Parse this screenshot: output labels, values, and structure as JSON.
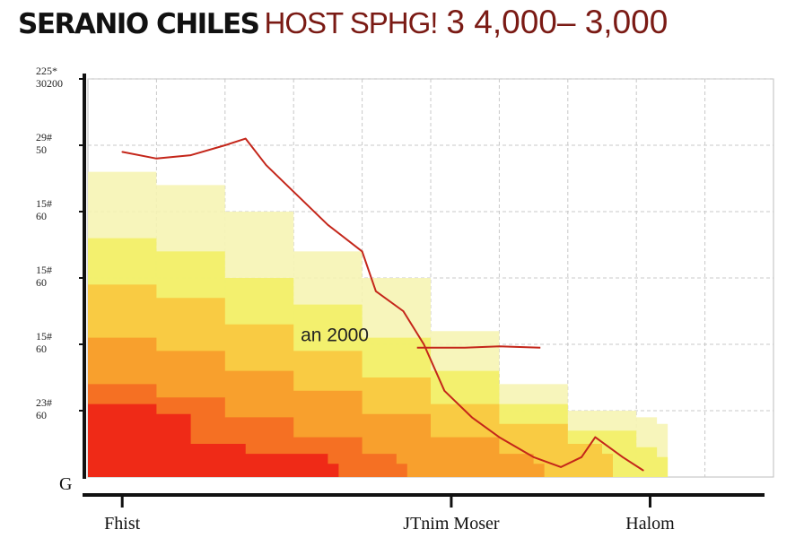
{
  "title": {
    "part1": "SERANIO CHILES",
    "part2": "HOST SPHG!",
    "part3": "3 4,000– 3,000"
  },
  "chart_data": {
    "type": "area",
    "title": "SERANIO CHILES HOST SPHG! 3 4,000– 3,000",
    "xlabel": "",
    "ylabel": "",
    "xlim": [
      0,
      10
    ],
    "ylim": [
      0,
      6
    ],
    "grid": true,
    "y_ticks": [
      {
        "value": 6,
        "line1": "225*",
        "line2": "30200"
      },
      {
        "value": 5,
        "line1": "29#",
        "line2": "50"
      },
      {
        "value": 4,
        "line1": "15#",
        "line2": "60"
      },
      {
        "value": 3,
        "line1": "15#",
        "line2": "60"
      },
      {
        "value": 2,
        "line1": "15#",
        "line2": "60"
      },
      {
        "value": 1,
        "line1": "23#",
        "line2": "60"
      }
    ],
    "y_origin_label": "G",
    "categories": [
      {
        "label": "Fhist",
        "x": 0.5
      },
      {
        "label": "JTnim Moser",
        "x": 5.3
      },
      {
        "label": "Halom",
        "x": 8.2
      }
    ],
    "annotation": {
      "text": "an 2000",
      "x": 3.6,
      "y": 2.05
    },
    "series": [
      {
        "name": "pale yellow",
        "color": "#f6f4b4",
        "points": [
          [
            0,
            4.6
          ],
          [
            1,
            4.4
          ],
          [
            2,
            4.0
          ],
          [
            3,
            3.4
          ],
          [
            4,
            3.0
          ],
          [
            5,
            2.2
          ],
          [
            6,
            1.4
          ],
          [
            7,
            1.0
          ],
          [
            8,
            0.9
          ],
          [
            8.3,
            0.8
          ]
        ]
      },
      {
        "name": "yellow",
        "color": "#f2f066",
        "points": [
          [
            0,
            3.6
          ],
          [
            1,
            3.4
          ],
          [
            2,
            3.0
          ],
          [
            3,
            2.6
          ],
          [
            4,
            2.1
          ],
          [
            5,
            1.6
          ],
          [
            6,
            1.1
          ],
          [
            7,
            0.7
          ],
          [
            8,
            0.45
          ],
          [
            8.3,
            0.3
          ]
        ]
      },
      {
        "name": "light orange",
        "color": "#f9c73e",
        "points": [
          [
            0,
            2.9
          ],
          [
            1,
            2.7
          ],
          [
            2,
            2.3
          ],
          [
            3,
            1.9
          ],
          [
            4,
            1.5
          ],
          [
            5,
            1.1
          ],
          [
            6,
            0.8
          ],
          [
            7,
            0.5
          ],
          [
            7.5,
            0.35
          ]
        ]
      },
      {
        "name": "orange",
        "color": "#f79b2b",
        "points": [
          [
            0,
            2.1
          ],
          [
            1,
            1.9
          ],
          [
            2,
            1.6
          ],
          [
            3,
            1.3
          ],
          [
            4,
            0.95
          ],
          [
            5,
            0.6
          ],
          [
            6,
            0.35
          ],
          [
            6.5,
            0.2
          ]
        ]
      },
      {
        "name": "red orange",
        "color": "#f46a22",
        "points": [
          [
            0,
            1.4
          ],
          [
            1,
            1.2
          ],
          [
            2,
            0.9
          ],
          [
            3,
            0.6
          ],
          [
            4,
            0.35
          ],
          [
            4.5,
            0.2
          ]
        ]
      },
      {
        "name": "red",
        "color": "#ee2216",
        "points": [
          [
            0,
            1.1
          ],
          [
            1,
            0.95
          ],
          [
            1.5,
            0.5
          ],
          [
            2.3,
            0.35
          ],
          [
            3.5,
            0.2
          ]
        ]
      }
    ],
    "line": {
      "name": "trend",
      "color": "#c4261a",
      "points": [
        [
          0.5,
          4.9
        ],
        [
          1,
          4.8
        ],
        [
          1.5,
          4.85
        ],
        [
          2,
          5.0
        ],
        [
          2.3,
          5.1
        ],
        [
          2.6,
          4.7
        ],
        [
          3,
          4.3
        ],
        [
          3.5,
          3.8
        ],
        [
          4,
          3.4
        ],
        [
          4.2,
          2.8
        ],
        [
          4.6,
          2.5
        ],
        [
          4.9,
          2.0
        ],
        [
          5.2,
          1.3
        ],
        [
          5.6,
          0.9
        ],
        [
          6,
          0.6
        ],
        [
          6.5,
          0.3
        ],
        [
          6.9,
          0.15
        ],
        [
          7.2,
          0.3
        ],
        [
          7.4,
          0.6
        ],
        [
          7.8,
          0.3
        ],
        [
          8.1,
          0.1
        ]
      ],
      "branch": [
        [
          4.8,
          1.95
        ],
        [
          5.5,
          1.95
        ],
        [
          6,
          1.97
        ],
        [
          6.6,
          1.95
        ]
      ]
    }
  }
}
